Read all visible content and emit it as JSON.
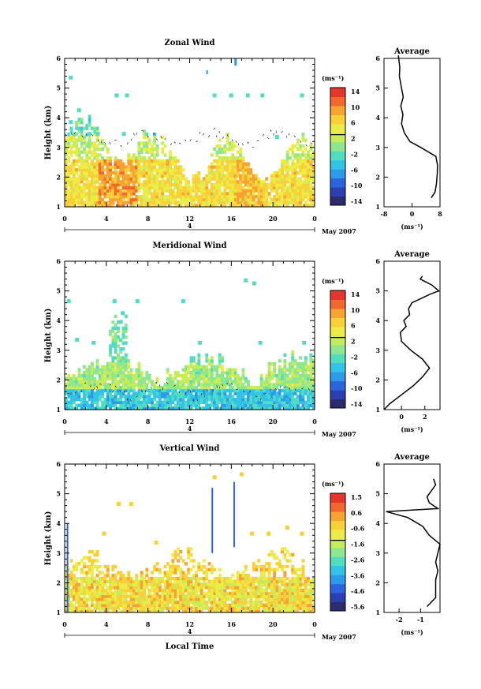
{
  "colormap": [
    "#2b2b6e",
    "#2c3fb0",
    "#2c64e0",
    "#2d9ae8",
    "#33c3e6",
    "#52dcc0",
    "#8ee68e",
    "#c6ec5c",
    "#ecec46",
    "#f8d03a",
    "#f7a332",
    "#f1672e",
    "#e5362e"
  ],
  "date_label": "May 2007",
  "x_ticks": [
    "0",
    "4",
    "8",
    "12",
    "16",
    "20",
    "0"
  ],
  "day_marker": "4",
  "common_xlabel": "Local Time",
  "chart_data": [
    {
      "type": "heatmap",
      "title": "Zonal Wind",
      "ylabel": "Height (km)",
      "y_ticks": [
        "1",
        "2",
        "3",
        "4",
        "5",
        "6"
      ],
      "ylim": [
        1,
        6
      ],
      "xlim": [
        0,
        24
      ],
      "unit": "(ms⁻¹)",
      "colorbar_labels": [
        "14",
        "10",
        "6",
        "2",
        "-2",
        "-6",
        "-10",
        "-14"
      ],
      "colorbar_range": [
        -16,
        16
      ],
      "average": {
        "title": "Average",
        "x_ticks": [
          "-8",
          "0",
          "8"
        ],
        "xlim": [
          -8,
          8
        ],
        "xlabel": "(ms⁻¹)",
        "profile": [
          [
            1.3,
            5.5
          ],
          [
            1.5,
            6.6
          ],
          [
            1.8,
            7.0
          ],
          [
            2.1,
            7.2
          ],
          [
            2.4,
            7.3
          ],
          [
            2.7,
            6.8
          ],
          [
            3.0,
            2.5
          ],
          [
            3.2,
            -0.6
          ],
          [
            3.5,
            -2.2
          ],
          [
            3.8,
            -3.0
          ],
          [
            4.1,
            -2.6
          ],
          [
            4.4,
            -3.2
          ],
          [
            4.7,
            -2.5
          ],
          [
            5.0,
            -3.0
          ],
          [
            5.4,
            -3.6
          ],
          [
            5.7,
            -3.5
          ],
          [
            6.1,
            -3.9
          ]
        ]
      }
    },
    {
      "type": "heatmap",
      "title": "Meridional Wind",
      "ylabel": "Height (km)",
      "y_ticks": [
        "1",
        "2",
        "3",
        "4",
        "5",
        "6"
      ],
      "ylim": [
        1,
        6
      ],
      "xlim": [
        0,
        24
      ],
      "unit": "(ms⁻¹)",
      "colorbar_labels": [
        "14",
        "10",
        "6",
        "2",
        "-2",
        "-6",
        "-10",
        "-14"
      ],
      "colorbar_range": [
        -16,
        16
      ],
      "average": {
        "title": "Average",
        "x_ticks": [
          "0",
          "2"
        ],
        "xlim": [
          -1.5,
          3.3
        ],
        "xlabel": "(ms⁻¹)",
        "profile": [
          [
            1.0,
            -1.5
          ],
          [
            1.2,
            -1.0
          ],
          [
            1.5,
            0.0
          ],
          [
            1.8,
            1.0
          ],
          [
            2.1,
            1.8
          ],
          [
            2.4,
            2.4
          ],
          [
            2.7,
            1.8
          ],
          [
            3.0,
            0.8
          ],
          [
            3.3,
            0.0
          ],
          [
            3.6,
            -0.1
          ],
          [
            3.8,
            0.4
          ],
          [
            4.0,
            0.2
          ],
          [
            4.2,
            0.7
          ],
          [
            4.4,
            0.6
          ],
          [
            4.6,
            0.9
          ],
          [
            4.9,
            2.5
          ],
          [
            5.0,
            3.2
          ],
          [
            5.2,
            2.6
          ],
          [
            5.4,
            1.6
          ],
          [
            5.5,
            1.8
          ]
        ]
      }
    },
    {
      "type": "heatmap",
      "title": "Vertical Wind",
      "ylabel": "Height (km)",
      "y_ticks": [
        "1",
        "2",
        "3",
        "4",
        "5",
        "6"
      ],
      "ylim": [
        1,
        6
      ],
      "xlim": [
        0,
        24
      ],
      "unit": "(ms⁻¹)",
      "colorbar_labels": [
        "1.5",
        "0.6",
        "-0.6",
        "-1.6",
        "-2.6",
        "-3.6",
        "-4.6",
        "-5.6"
      ],
      "colorbar_range": [
        -6.2,
        2.0
      ],
      "average": {
        "title": "Average",
        "x_ticks": [
          "-2",
          "-1"
        ],
        "xlim": [
          -2.7,
          -0.1
        ],
        "xlabel": "(ms⁻¹)",
        "profile": [
          [
            1.2,
            -0.7
          ],
          [
            1.5,
            -0.3
          ],
          [
            1.8,
            -0.3
          ],
          [
            2.1,
            -0.3
          ],
          [
            2.4,
            -0.2
          ],
          [
            2.7,
            -0.3
          ],
          [
            3.0,
            -0.2
          ],
          [
            3.3,
            -0.1
          ],
          [
            3.6,
            -0.6
          ],
          [
            3.9,
            -0.9
          ],
          [
            4.2,
            -1.6
          ],
          [
            4.4,
            -2.6
          ],
          [
            4.5,
            -0.2
          ],
          [
            4.7,
            -0.6
          ],
          [
            4.9,
            -0.7
          ],
          [
            5.1,
            -0.5
          ],
          [
            5.3,
            -0.3
          ],
          [
            5.5,
            -0.4
          ]
        ]
      }
    }
  ]
}
